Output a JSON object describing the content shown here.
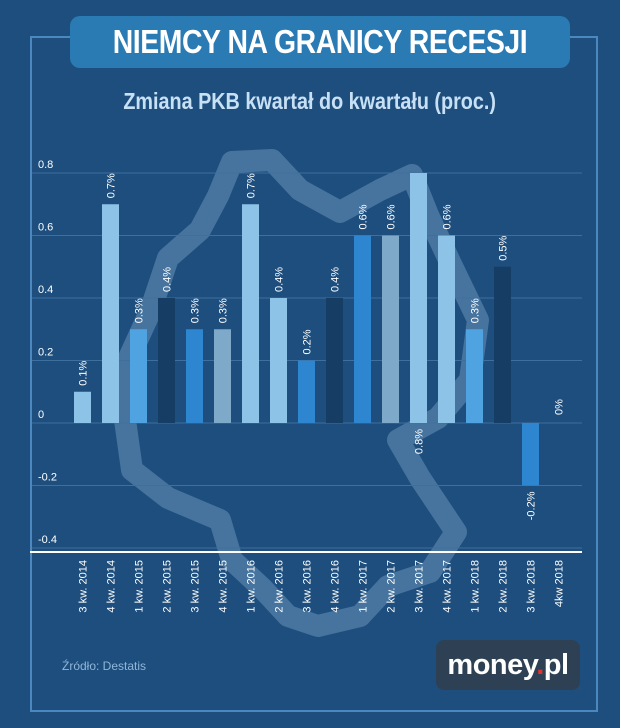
{
  "header": {
    "title": "NIEMCY NA GRANICY RECESJI",
    "subtitle": "Zmiana PKB kwartał do kwartału (proc.)"
  },
  "footer": {
    "source": "Źródło: Destatis",
    "logo_main": "money",
    "logo_dot": ".",
    "logo_suffix": "pl"
  },
  "chart_data": {
    "type": "bar",
    "title": "Zmiana PKB kwartał do kwartału (proc.)",
    "xlabel": "",
    "ylabel": "",
    "ylim": [
      -0.4,
      0.8
    ],
    "yticks": [
      0.8,
      0.6,
      0.4,
      0.2,
      0,
      -0.2,
      -0.4
    ],
    "ytick_labels": [
      "0.8",
      "0.6",
      "0.4",
      "0.2",
      "0",
      "-0.2",
      "-0.4"
    ],
    "grid": true,
    "categories": [
      "3 kw. 2014",
      "4 kw. 2014",
      "1 kw. 2015",
      "2 kw. 2015",
      "3 kw. 2015",
      "4 kw. 2015",
      "1 kw. 2016",
      "2 kw. 2016",
      "3 kw. 2016",
      "4 kw. 2016",
      "1 kw. 2017",
      "2 kw. 2017",
      "3 kw. 2017",
      "4 kw. 2017",
      "1 kw. 2018",
      "2 kw. 2018",
      "3 kw. 2018",
      "4kw 2018"
    ],
    "values": [
      0.1,
      0.7,
      0.3,
      0.4,
      0.3,
      0.3,
      0.7,
      0.4,
      0.2,
      0.4,
      0.6,
      0.6,
      0.8,
      0.6,
      0.3,
      0.5,
      -0.2,
      0
    ],
    "data_labels": [
      "0.1%",
      "0.7%",
      "0.3%",
      "0.4%",
      "0.3%",
      "0.3%",
      "0.7%",
      "0.4%",
      "0.2%",
      "0.4%",
      "0.6%",
      "0.6%",
      "0.8%",
      "0.6%",
      "0.3%",
      "0.5%",
      "-0.2%",
      "0%"
    ],
    "colors": [
      "#8ec3e8",
      "#8ec3e8",
      "#4fa3e0",
      "#163d63",
      "#2f86d0",
      "#7fa9c9",
      "#8ec3e8",
      "#8ec3e8",
      "#2f86d0",
      "#163d63",
      "#2f86d0",
      "#7fa9c9",
      "#8ec3e8",
      "#8ec3e8",
      "#4fa3e0",
      "#163d63",
      "#2f86d0",
      "#7fa9c9"
    ]
  },
  "colors": {
    "background": "#1d4e7e",
    "title_box": "#2a7bb3",
    "frame": "#4a88bf",
    "axis_text": "#ffffff",
    "grid": "#3f6f9c"
  }
}
